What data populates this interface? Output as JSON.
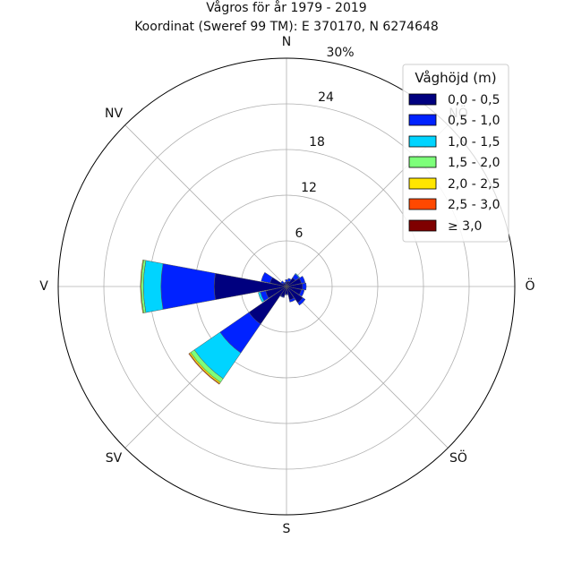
{
  "chart_data": {
    "type": "polar-bar",
    "title": "Vågros för år 1979 - 2019",
    "subtitle": "Koordinat (Sweref 99 TM): E 370170, N 6274648",
    "direction_labels": [
      "N",
      "NV",
      "V",
      "SV",
      "S",
      "SÖ",
      "Ö",
      "NÖ"
    ],
    "radial_ticks": [
      "6",
      "12",
      "18",
      "24",
      "30%"
    ],
    "rmax": 30,
    "legend": {
      "title": "Våghöjd (m)",
      "placement": "top-right",
      "entries": [
        "0,0 - 0,5",
        "0,5 - 1,0",
        "1,0 - 1,5",
        "1,5 - 2,0",
        "2,0 - 2,5",
        "2,5 - 3,0",
        "≥ 3,0"
      ]
    },
    "colors": [
      "#00007f",
      "#0022ff",
      "#00d4ff",
      "#7dff7a",
      "#ffe600",
      "#ff4800",
      "#7f0000"
    ],
    "sectors_deg": [
      0,
      22.5,
      45,
      67.5,
      90,
      112.5,
      135,
      157.5,
      180,
      202.5,
      225,
      247.5,
      270,
      292.5,
      315,
      337.5
    ],
    "frequencies": [
      [
        0.6,
        0.3,
        0,
        0,
        0,
        0,
        0
      ],
      [
        0.7,
        0.4,
        0,
        0,
        0,
        0,
        0
      ],
      [
        1.4,
        0.6,
        0.1,
        0,
        0,
        0,
        0
      ],
      [
        2.0,
        0.5,
        0,
        0,
        0,
        0,
        0
      ],
      [
        2.1,
        0.5,
        0,
        0,
        0,
        0,
        0
      ],
      [
        2.0,
        0.4,
        0,
        0,
        0,
        0,
        0
      ],
      [
        2.6,
        0.4,
        0,
        0,
        0,
        0,
        0
      ],
      [
        1.8,
        0.3,
        0,
        0,
        0,
        0,
        0
      ],
      [
        1.0,
        0.1,
        0,
        0,
        0,
        0,
        0
      ],
      [
        1.4,
        0.1,
        0,
        0,
        0,
        0,
        0
      ],
      [
        6.0,
        4.6,
        4.1,
        0.6,
        0.2,
        0.1,
        0
      ],
      [
        2.8,
        0.7,
        0.3,
        0,
        0,
        0,
        0
      ],
      [
        9.5,
        7.0,
        2.3,
        0.3,
        0.1,
        0,
        0
      ],
      [
        2.2,
        1.2,
        0,
        0,
        0,
        0,
        0
      ],
      [
        0.6,
        0.3,
        0,
        0,
        0,
        0,
        0
      ],
      [
        0.4,
        0.2,
        0,
        0,
        0,
        0,
        0
      ]
    ]
  }
}
